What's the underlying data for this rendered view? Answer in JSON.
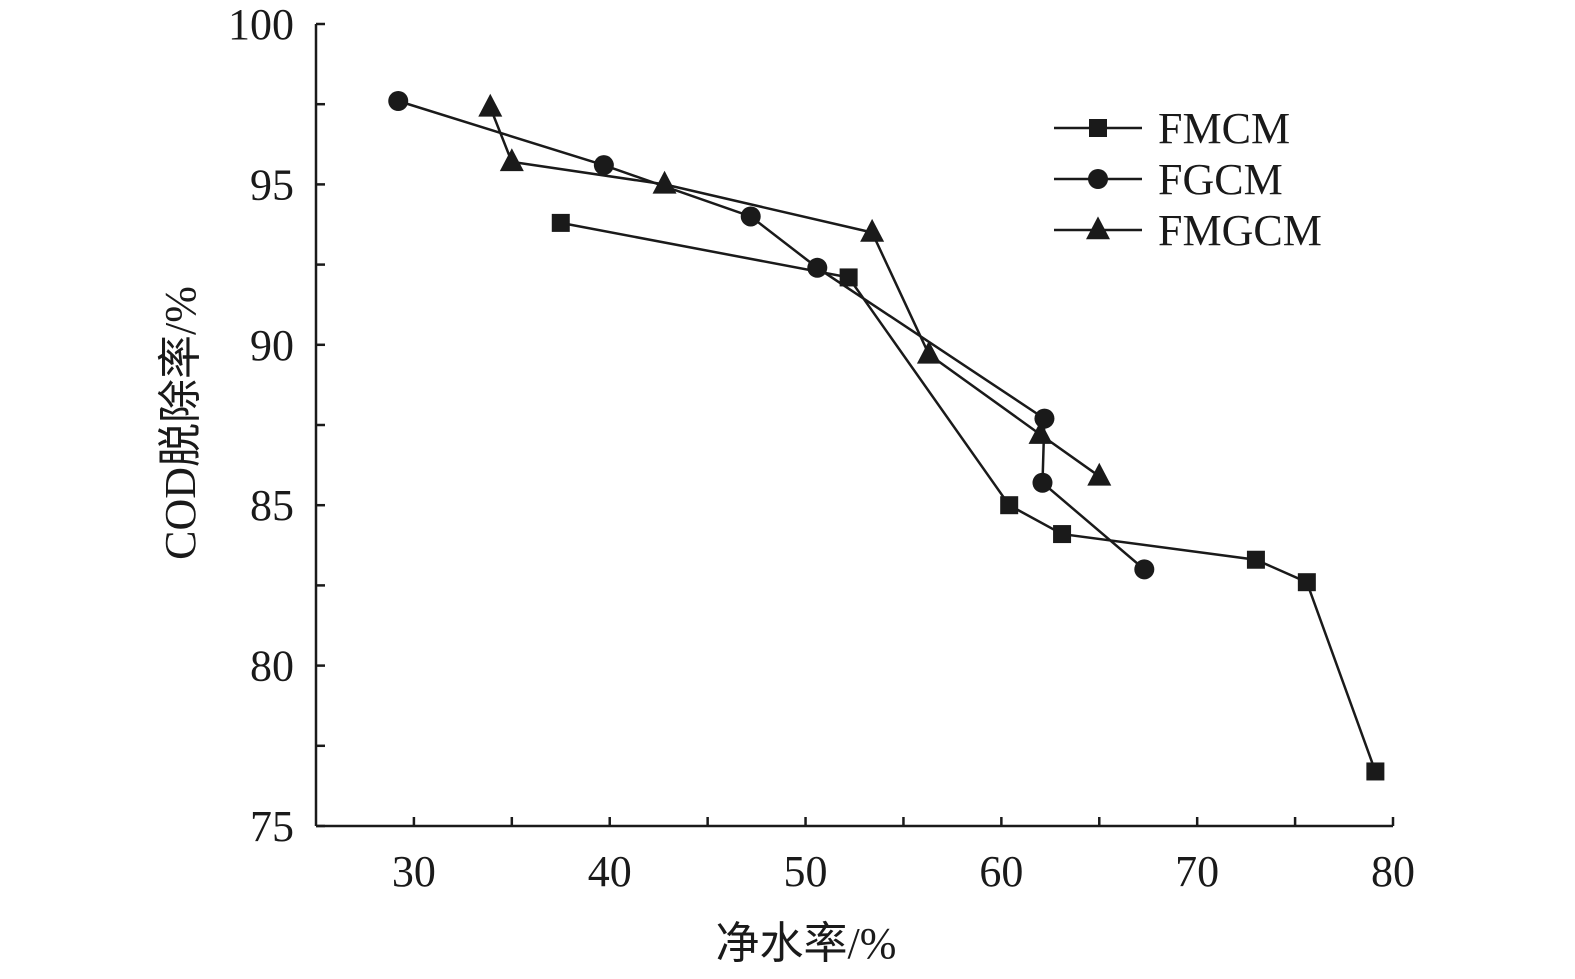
{
  "chart_data": {
    "type": "line",
    "title": "",
    "xlabel": "净水率/%",
    "ylabel": "COD脱除率/%",
    "xlim": [
      25,
      80
    ],
    "ylim": [
      75,
      100
    ],
    "xticks": [
      30,
      40,
      50,
      60,
      70,
      80
    ],
    "yticks": [
      75,
      80,
      85,
      90,
      95,
      100
    ],
    "x_minor_step": 5,
    "y_minor_step": 2.5,
    "grid": false,
    "legend_position": "top-right",
    "color": "#1a1a1a",
    "series": [
      {
        "name": "FMCM",
        "marker": "square",
        "points": [
          [
            37.5,
            93.8
          ],
          [
            52.2,
            92.1
          ],
          [
            60.4,
            85.0
          ],
          [
            63.1,
            84.1
          ],
          [
            73.0,
            83.3
          ],
          [
            75.6,
            82.6
          ],
          [
            79.1,
            76.7
          ]
        ]
      },
      {
        "name": "FGCM",
        "marker": "circle",
        "points": [
          [
            29.2,
            97.6
          ],
          [
            39.7,
            95.6
          ],
          [
            47.2,
            94.0
          ],
          [
            50.6,
            92.4
          ],
          [
            62.2,
            87.7
          ],
          [
            62.1,
            85.7
          ],
          [
            67.3,
            83.0
          ]
        ]
      },
      {
        "name": "FMGCM",
        "marker": "triangle",
        "points": [
          [
            33.9,
            97.4
          ],
          [
            35.0,
            95.7
          ],
          [
            42.8,
            95.0
          ],
          [
            53.4,
            93.5
          ],
          [
            56.3,
            89.7
          ],
          [
            62.0,
            87.2
          ],
          [
            65.0,
            85.9
          ]
        ]
      }
    ]
  }
}
